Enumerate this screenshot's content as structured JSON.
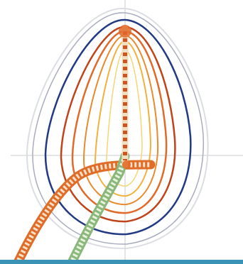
{
  "figure": {
    "background": "#ffffff",
    "crosshair_color": "#c9cbd2",
    "contour_colors": [
      "#dcdde3",
      "#a9acc0",
      "#213a83",
      "#c0441a",
      "#e06a2a",
      "#e88a2e",
      "#f2b13e",
      "#f6d576"
    ],
    "left_track": {
      "outer": "#e06c29",
      "inner": "#f7e1c8"
    },
    "right_track": {
      "outer": "#8ab77a",
      "inner": "#e9f2dd"
    },
    "center_track": {
      "fill": "#f3dfbf",
      "dots": "#d0541f"
    },
    "bottom_band_color": "#3a93b4"
  }
}
